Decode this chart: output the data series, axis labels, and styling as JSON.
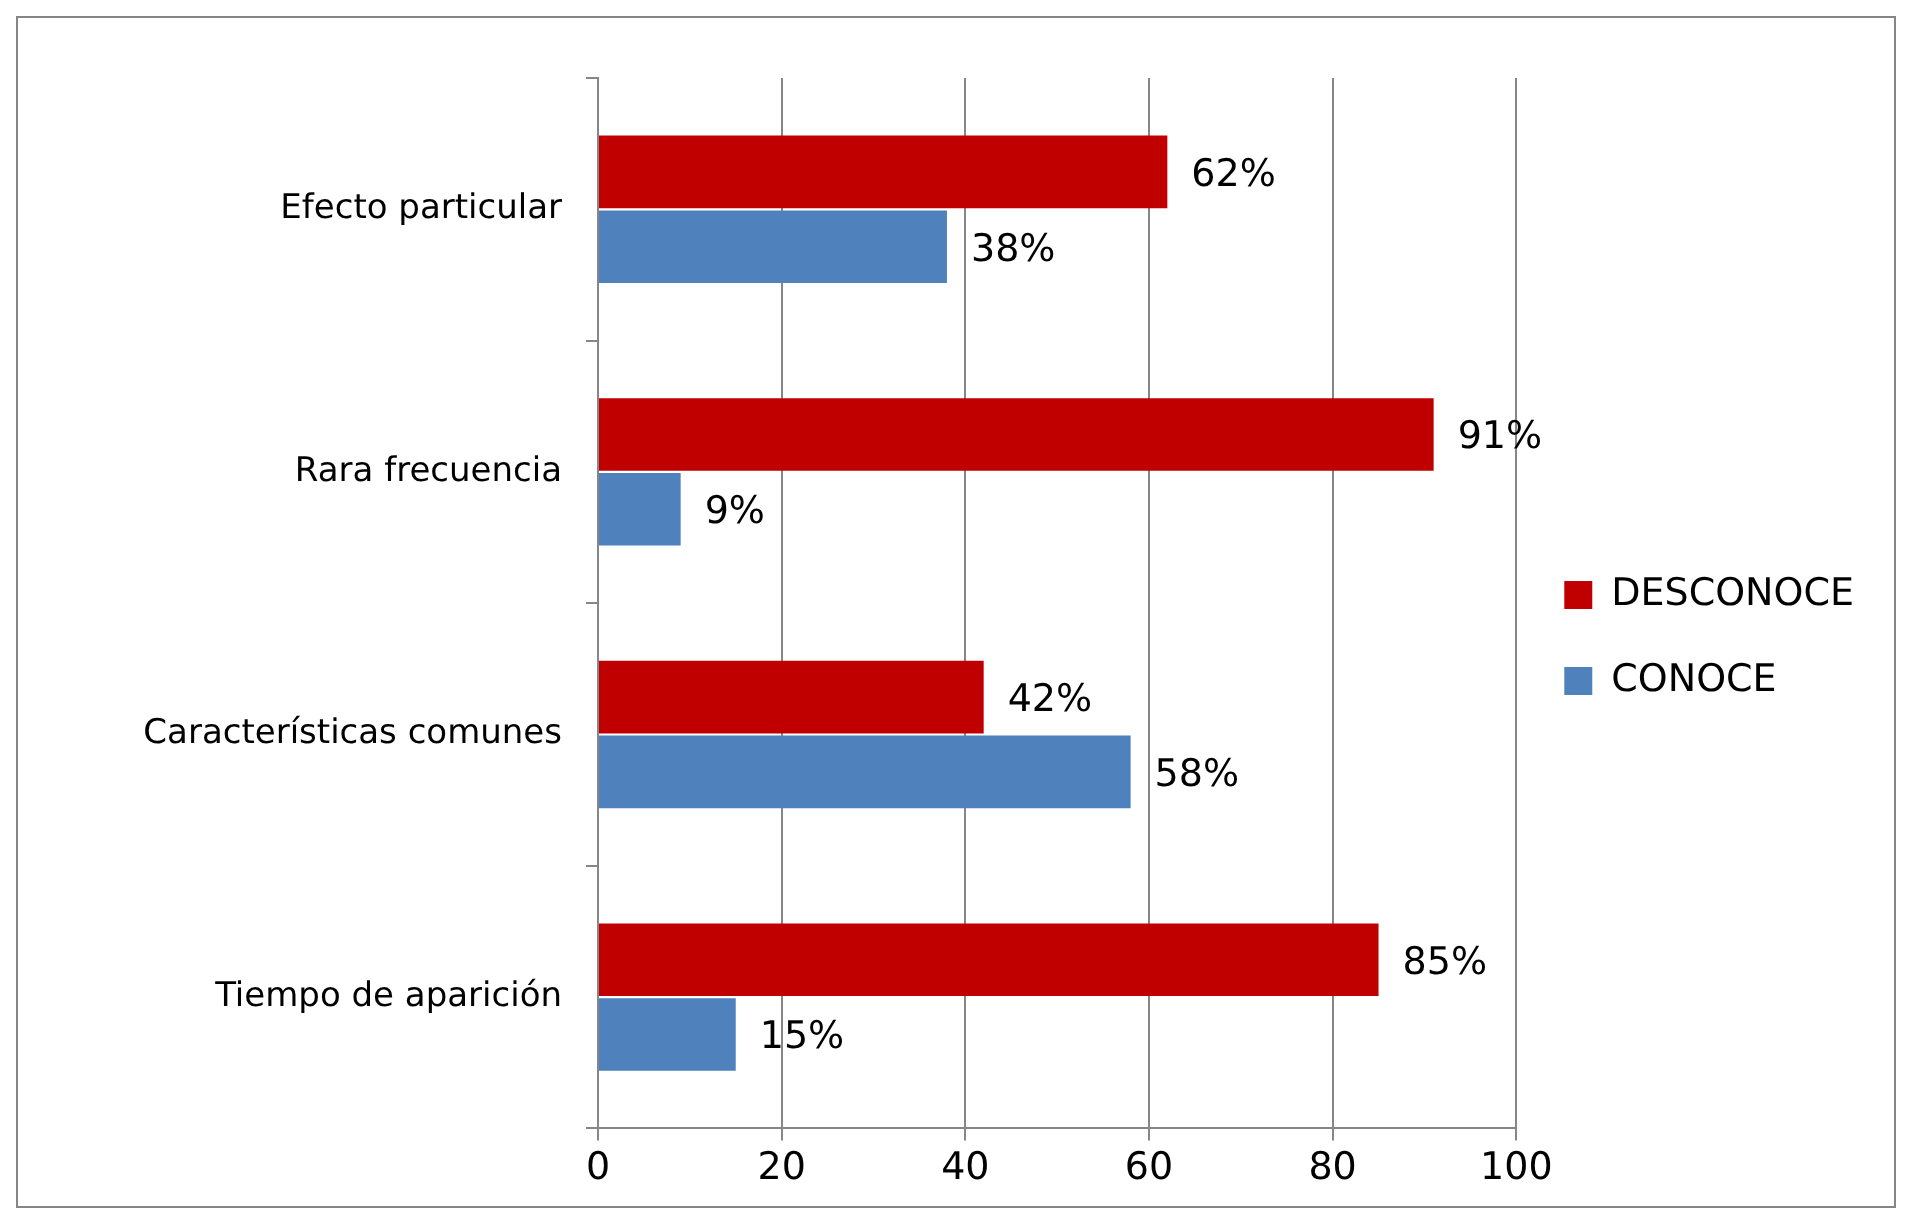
{
  "chart_data": {
    "type": "bar",
    "orientation": "horizontal",
    "categories": [
      "Efecto particular",
      "Rara frecuencia",
      "Características comunes",
      "Tiempo de aparición"
    ],
    "series": [
      {
        "name": "DESCONOCE",
        "color": "#c00000",
        "values": [
          62,
          91,
          42,
          85
        ],
        "value_labels": [
          "62%",
          "91%",
          "42%",
          "85%"
        ]
      },
      {
        "name": "CONOCE",
        "color": "#4f81bd",
        "values": [
          38,
          9,
          58,
          15
        ],
        "value_labels": [
          "38%",
          "9%",
          "58%",
          "15%"
        ]
      }
    ],
    "xlim": [
      0,
      100
    ],
    "xticks": [
      0,
      20,
      40,
      60,
      80,
      100
    ],
    "grid": "x",
    "legend": "right"
  }
}
